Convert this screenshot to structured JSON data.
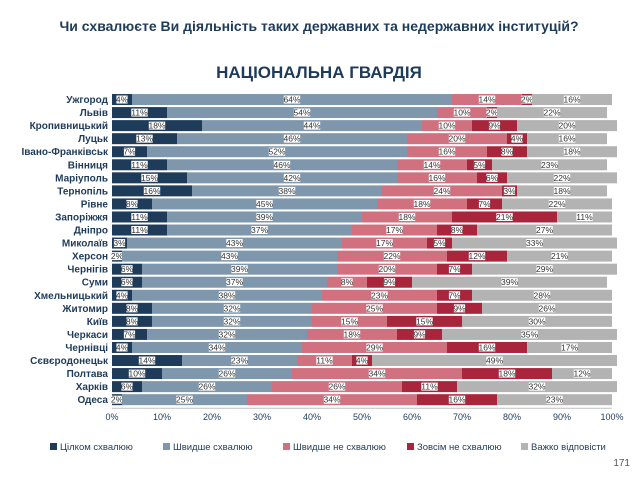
{
  "title": "Чи схвалюєте Ви діяльність таких державних та недержавних інституцій?",
  "subtitle": "НАЦІОНАЛЬНА ГВАРДІЯ",
  "page_number": "171",
  "colors": {
    "fully_approve": "#1f3b5a",
    "rather_approve": "#7e97ac",
    "rather_disapprove": "#d1707f",
    "fully_disapprove": "#a8253b",
    "hard_to_say": "#b3b3b3"
  },
  "chart_data": {
    "type": "bar",
    "orientation": "horizontal",
    "stacked": true,
    "xlim": [
      0,
      100
    ],
    "x_ticks": [
      "0%",
      "10%",
      "20%",
      "30%",
      "40%",
      "50%",
      "60%",
      "70%",
      "80%",
      "90%",
      "100%"
    ],
    "legend_position": "bottom",
    "categories": [
      "Ужгород",
      "Львів",
      "Кропивницький",
      "Луцьк",
      "Івано-Франківськ",
      "Вінниця",
      "Маріуполь",
      "Тернопіль",
      "Рівне",
      "Запоріжжя",
      "Дніпро",
      "Миколаїв",
      "Херсон",
      "Чернігів",
      "Суми",
      "Хмельницький",
      "Житомир",
      "Київ",
      "Черкаси",
      "Чернівці",
      "Сєвєродонецьк",
      "Полтава",
      "Харків",
      "Одеса"
    ],
    "series": [
      {
        "name": "Цілком схвалюю",
        "values": [
          4,
          11,
          18,
          13,
          7,
          11,
          15,
          16,
          8,
          11,
          11,
          3,
          2,
          6,
          6,
          4,
          8,
          8,
          7,
          4,
          14,
          10,
          6,
          2
        ]
      },
      {
        "name": "Швидше схвалюю",
        "values": [
          64,
          54,
          44,
          46,
          52,
          46,
          42,
          38,
          45,
          39,
          37,
          43,
          43,
          39,
          37,
          38,
          32,
          32,
          32,
          34,
          23,
          26,
          26,
          25
        ]
      },
      {
        "name": "Швидше не схвалюю",
        "values": [
          14,
          10,
          10,
          20,
          16,
          14,
          16,
          24,
          18,
          18,
          17,
          17,
          22,
          20,
          8,
          23,
          25,
          15,
          18,
          29,
          11,
          34,
          26,
          34
        ]
      },
      {
        "name": "Зовсім не схвалюю",
        "values": [
          2,
          2,
          9,
          4,
          8,
          5,
          6,
          3,
          7,
          21,
          8,
          5,
          12,
          7,
          9,
          7,
          9,
          15,
          9,
          16,
          4,
          18,
          11,
          16
        ]
      },
      {
        "name": "Важко відповісти",
        "values": [
          16,
          22,
          20,
          16,
          18,
          23,
          22,
          18,
          22,
          11,
          27,
          33,
          21,
          29,
          39,
          28,
          26,
          30,
          35,
          17,
          49,
          12,
          32,
          23
        ]
      }
    ]
  }
}
